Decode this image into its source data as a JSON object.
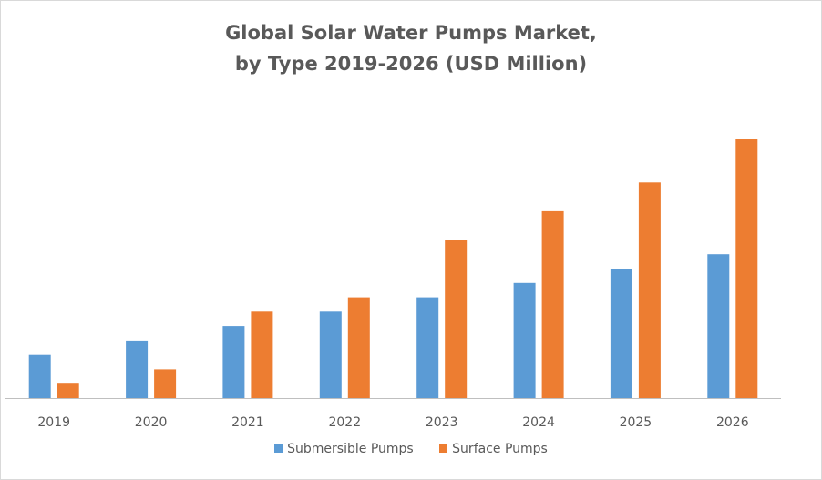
{
  "chart_data": {
    "type": "bar",
    "title_lines": [
      "Global Solar Water Pumps Market,",
      "by Type 2019-2026 (USD Million)"
    ],
    "categories": [
      "2019",
      "2020",
      "2021",
      "2022",
      "2023",
      "2024",
      "2025",
      "2026"
    ],
    "series": [
      {
        "name": "Submersible Pumps",
        "color": "#5B9BD5",
        "values": [
          3,
          4,
          5,
          6,
          7,
          8,
          9,
          10
        ]
      },
      {
        "name": "Surface Pumps",
        "color": "#ED7D31",
        "values": [
          1,
          2,
          6,
          7,
          11,
          13,
          15,
          18
        ]
      }
    ],
    "xlabel": "",
    "ylabel": "",
    "ylim": [
      0,
      18.5
    ],
    "y_axis_visible": false,
    "grid": false,
    "legend_position": "bottom",
    "value_note": "relative values; no y-axis scale shown"
  }
}
